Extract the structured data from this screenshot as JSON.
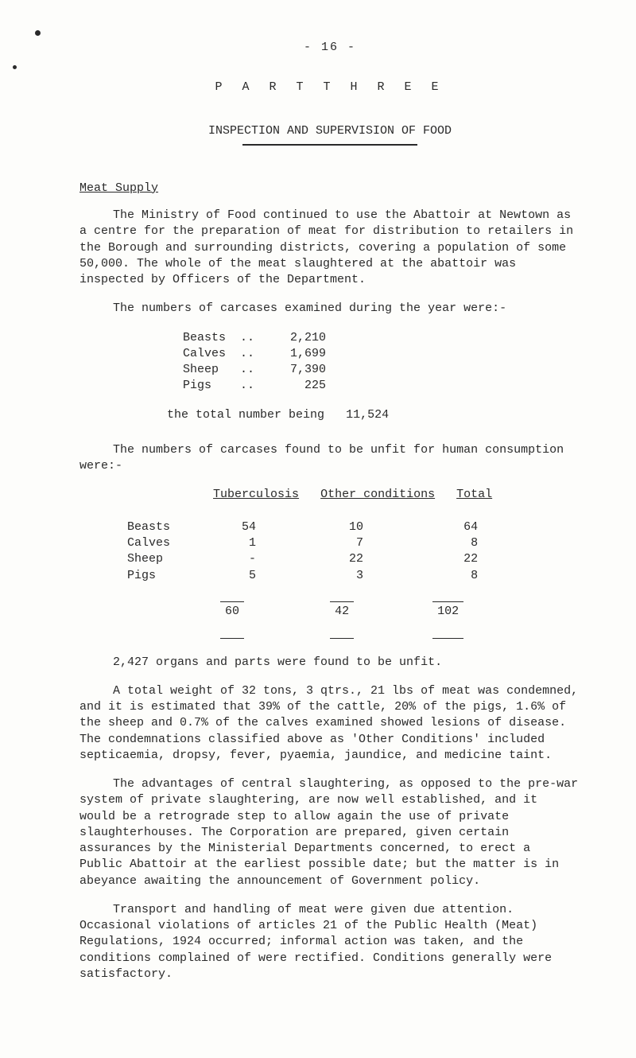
{
  "pageNumber": "- 16 -",
  "partTitle": "P A R T   T H R E E",
  "subTitle": "INSPECTION AND SUPERVISION OF FOOD",
  "section": "Meat Supply",
  "para1": "The Ministry of Food continued to use the Abattoir at Newtown as a centre for the preparation of meat for distribution to retailers in the Borough and surrounding districts, covering a population of some 50,000.  The whole of the meat slaughtered at the abattoir was inspected by Officers of the Department.",
  "para2": "The numbers of carcases examined during the year were:-",
  "list1": {
    "rows": [
      {
        "label": "Beasts",
        "dots": "..",
        "val": "2,210"
      },
      {
        "label": "Calves",
        "dots": "..",
        "val": "1,699"
      },
      {
        "label": "Sheep",
        "dots": "..",
        "val": "7,390"
      },
      {
        "label": "Pigs",
        "dots": "..",
        "val": "  225"
      }
    ],
    "totalLabel": "the total number being",
    "totalVal": "11,524"
  },
  "para3": "The numbers of carcases found to be unfit for human consumption were:-",
  "table2": {
    "headers": [
      "Tuberculosis",
      "Other conditions",
      "Total"
    ],
    "rows": [
      {
        "label": "Beasts",
        "c1": "54",
        "c2": "10",
        "c3": "64"
      },
      {
        "label": "Calves",
        "c1": " 1",
        "c2": " 7",
        "c3": " 8"
      },
      {
        "label": "Sheep",
        "c1": " -",
        "c2": "22",
        "c3": "22"
      },
      {
        "label": "Pigs",
        "c1": " 5",
        "c2": " 3",
        "c3": " 8"
      }
    ],
    "totals": {
      "c1": "60",
      "c2": "42",
      "c3": "102"
    }
  },
  "para4": "2,427 organs and parts were found to be unfit.",
  "para5": "A total weight of 32 tons, 3 qtrs., 21 lbs of meat was condemned, and it is estimated that 39% of the cattle, 20% of the pigs, 1.6% of the sheep and 0.7% of the calves examined showed lesions of disease.  The condemnations classified above as 'Other Conditions' included septicaemia, dropsy, fever, pyaemia, jaundice, and medicine taint.",
  "para6": "The advantages of central slaughtering, as opposed to the pre-war system of private slaughtering, are now well established, and it would be a retrograde step to allow again the use of private slaughterhouses.  The Corporation are prepared, given certain assurances by the Ministerial Departments concerned, to erect a Public Abattoir at the earliest possible date; but the matter is in abeyance awaiting the announcement of Government policy.",
  "para7": "Transport and handling of meat were given due attention. Occasional violations of articles 21 of the Public Health (Meat) Regulations, 1924 occurred; informal action was taken, and the conditions complained of were rectified.  Conditions generally were satisfactory."
}
